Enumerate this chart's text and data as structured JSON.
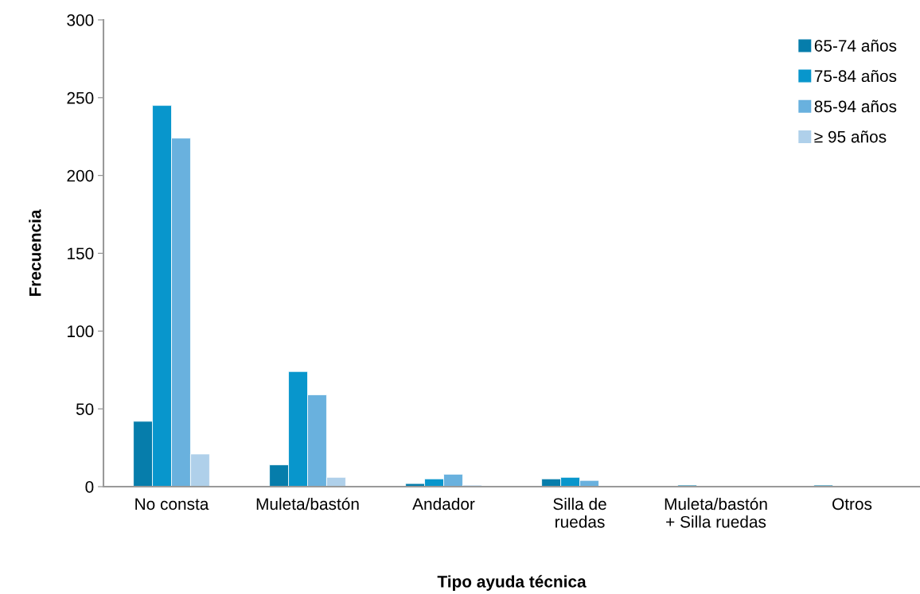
{
  "chart_data": {
    "type": "bar",
    "xlabel": "Tipo ayuda técnica",
    "ylabel": "Frecuencia",
    "categories": [
      "No consta",
      "Muleta/bastón",
      "Andador",
      "Silla de\nruedas",
      "Muleta/bastón\n+ Silla ruedas",
      "Otros"
    ],
    "series": [
      {
        "name": "65-74 años",
        "color": "#067dab",
        "values": [
          42,
          14,
          2,
          5,
          1,
          1
        ]
      },
      {
        "name": "75-84 años",
        "color": "#0896cc",
        "values": [
          245,
          74,
          5,
          6,
          0,
          0
        ]
      },
      {
        "name": "85-94 años",
        "color": "#69b1de",
        "values": [
          224,
          59,
          8,
          4,
          0,
          0
        ]
      },
      {
        "name": "≥ 95 años",
        "color": "#afd0ea",
        "values": [
          21,
          6,
          1,
          0,
          0,
          0
        ]
      }
    ],
    "ylim": [
      0,
      300
    ],
    "yticks": [
      0,
      50,
      100,
      150,
      200,
      250,
      300
    ],
    "grid": false,
    "legend": "top right"
  }
}
